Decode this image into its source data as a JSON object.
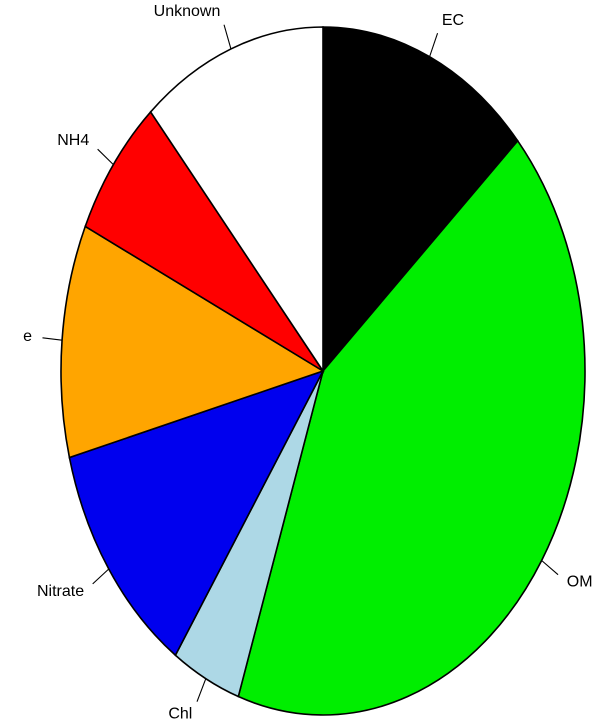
{
  "chart_data": {
    "type": "pie",
    "title": "",
    "start": "12 o'clock",
    "direction": "clockwise",
    "slices": [
      {
        "label": "EC",
        "value": 14,
        "color": "#000000"
      },
      {
        "label": "OM",
        "value": 44,
        "color": "#00ee00"
      },
      {
        "label": "Chl",
        "value": 4.5,
        "color": "#add8e6"
      },
      {
        "label": "Nitrate",
        "value": 12,
        "color": "#0000ee"
      },
      {
        "label": "e",
        "value": 11.5,
        "color": "#ffa500"
      },
      {
        "label": "NH4",
        "value": 7,
        "color": "#ff0000"
      },
      {
        "label": "Unknown",
        "value": 12,
        "color": "#ffffff"
      }
    ]
  }
}
